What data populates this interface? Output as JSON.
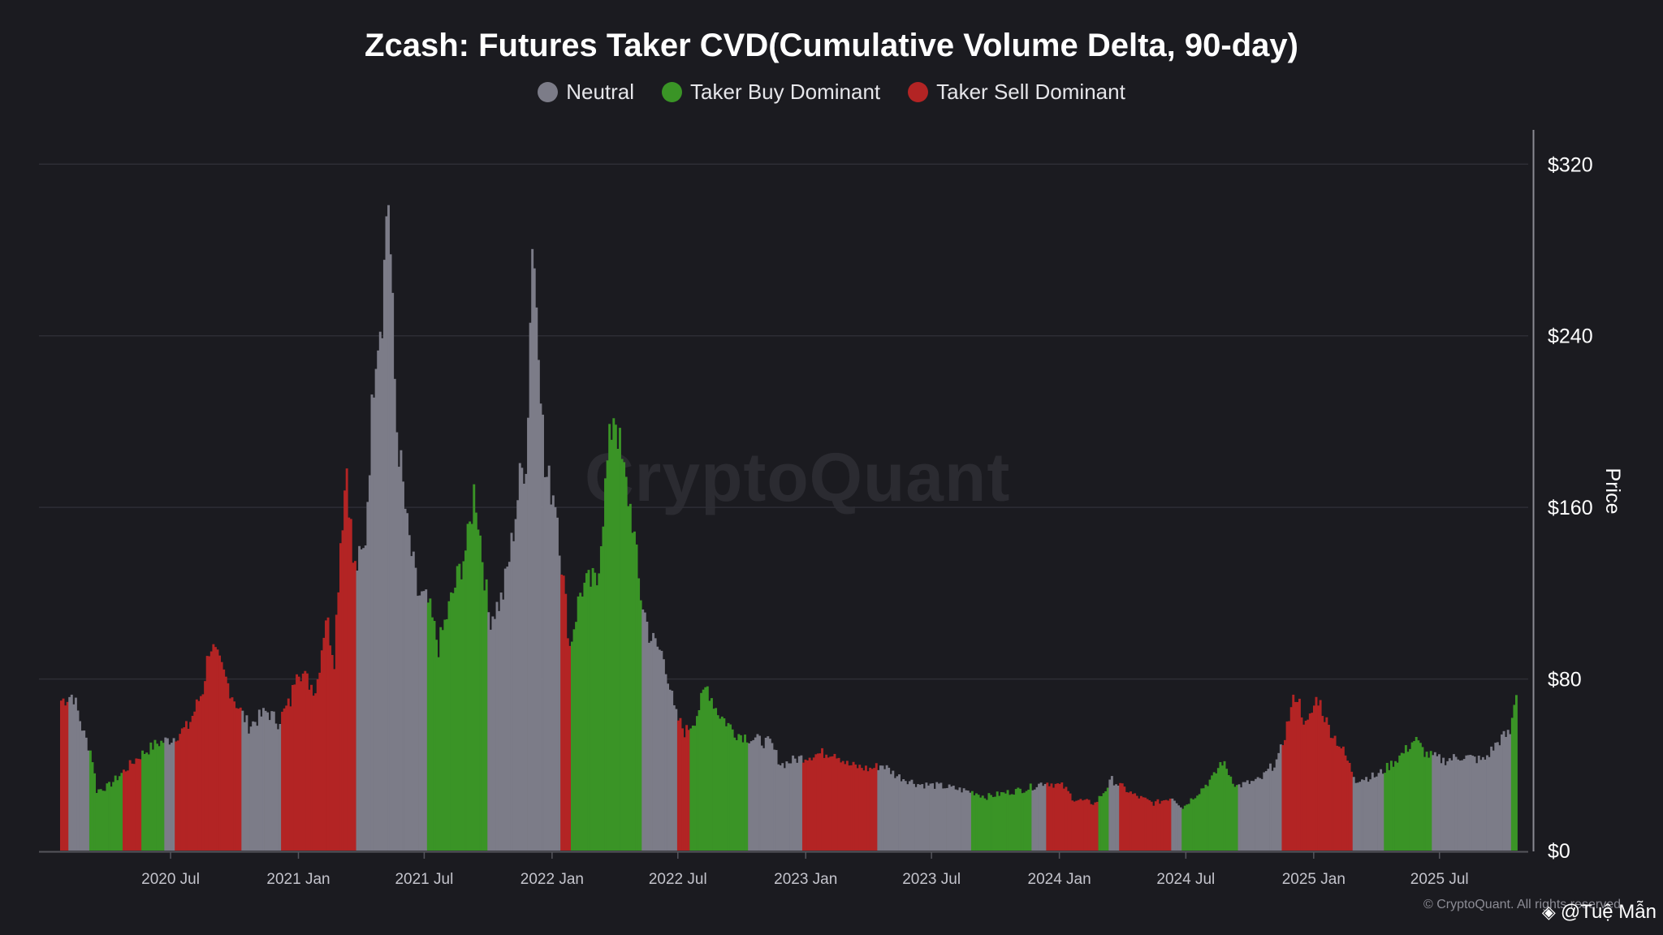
{
  "title": "Zcash: Futures Taker CVD(Cumulative Volume Delta, 90-day)",
  "legend": [
    {
      "label": "Neutral",
      "color": "#7c7c88"
    },
    {
      "label": "Taker Buy Dominant",
      "color": "#3a9426"
    },
    {
      "label": "Taker Sell Dominant",
      "color": "#b32424"
    }
  ],
  "watermark": "CryptoQuant",
  "copyright": "© CryptoQuant. All rights reserved",
  "author": "@Tuệ Mẫn",
  "author_icon": "binance-logo-icon",
  "chart_data": {
    "type": "bar",
    "ylabel": "Price",
    "ylim": [
      0,
      336
    ],
    "y_ticks": [
      "$0",
      "$80",
      "$160",
      "$240",
      "$320"
    ],
    "y_tick_values": [
      0,
      80,
      160,
      240,
      320
    ],
    "x_ticks": [
      "2020 Jul",
      "2021 Jan",
      "2021 Jul",
      "2022 Jan",
      "2022 Jul",
      "2023 Jan",
      "2023 Jul",
      "2024 Jan",
      "2024 Jul",
      "2025 Jan",
      "2025 Jul"
    ],
    "x_tick_dates": [
      "2020-07-01",
      "2021-01-01",
      "2021-07-01",
      "2022-01-01",
      "2022-07-01",
      "2023-01-01",
      "2023-07-01",
      "2024-01-01",
      "2024-07-01",
      "2025-01-01",
      "2025-07-01"
    ],
    "x_range": [
      "2020-01-10",
      "2025-10-18"
    ],
    "grid": true,
    "price_points": [
      [
        "2020-01-25",
        70
      ],
      [
        "2020-02-10",
        73
      ],
      [
        "2020-02-25",
        55
      ],
      [
        "2020-03-08",
        45
      ],
      [
        "2020-03-15",
        28
      ],
      [
        "2020-04-01",
        30
      ],
      [
        "2020-04-20",
        36
      ],
      [
        "2020-05-15",
        44
      ],
      [
        "2020-06-10",
        50
      ],
      [
        "2020-07-01",
        52
      ],
      [
        "2020-07-25",
        58
      ],
      [
        "2020-08-15",
        75
      ],
      [
        "2020-08-25",
        97
      ],
      [
        "2020-09-10",
        85
      ],
      [
        "2020-09-30",
        70
      ],
      [
        "2020-10-20",
        58
      ],
      [
        "2020-11-15",
        65
      ],
      [
        "2020-12-01",
        60
      ],
      [
        "2020-12-20",
        70
      ],
      [
        "2020-12-28",
        87
      ],
      [
        "2021-01-10",
        80
      ],
      [
        "2021-01-25",
        75
      ],
      [
        "2021-02-08",
        110
      ],
      [
        "2021-02-20",
        90
      ],
      [
        "2021-03-01",
        145
      ],
      [
        "2021-03-10",
        180
      ],
      [
        "2021-03-20",
        130
      ],
      [
        "2021-04-05",
        140
      ],
      [
        "2021-04-20",
        235
      ],
      [
        "2021-05-01",
        255
      ],
      [
        "2021-05-08",
        315
      ],
      [
        "2021-05-20",
        200
      ],
      [
        "2021-06-05",
        150
      ],
      [
        "2021-06-20",
        120
      ],
      [
        "2021-07-05",
        115
      ],
      [
        "2021-07-20",
        95
      ],
      [
        "2021-08-10",
        120
      ],
      [
        "2021-09-01",
        145
      ],
      [
        "2021-09-10",
        170
      ],
      [
        "2021-10-01",
        108
      ],
      [
        "2021-10-20",
        118
      ],
      [
        "2021-11-01",
        140
      ],
      [
        "2021-11-15",
        175
      ],
      [
        "2021-11-25",
        185
      ],
      [
        "2021-12-01",
        288
      ],
      [
        "2021-12-10",
        250
      ],
      [
        "2021-12-20",
        175
      ],
      [
        "2022-01-05",
        165
      ],
      [
        "2022-01-12",
        138
      ],
      [
        "2022-01-25",
        95
      ],
      [
        "2022-02-10",
        122
      ],
      [
        "2022-02-25",
        125
      ],
      [
        "2022-03-05",
        125
      ],
      [
        "2022-03-20",
        180
      ],
      [
        "2022-03-30",
        208
      ],
      [
        "2022-04-10",
        180
      ],
      [
        "2022-04-25",
        155
      ],
      [
        "2022-05-05",
        122
      ],
      [
        "2022-05-20",
        100
      ],
      [
        "2022-06-10",
        90
      ],
      [
        "2022-06-25",
        64
      ],
      [
        "2022-07-10",
        55
      ],
      [
        "2022-07-25",
        62
      ],
      [
        "2022-08-10",
        77
      ],
      [
        "2022-08-25",
        65
      ],
      [
        "2022-09-20",
        55
      ],
      [
        "2022-10-15",
        52
      ],
      [
        "2022-11-10",
        50
      ],
      [
        "2022-11-25",
        40
      ],
      [
        "2022-12-20",
        43
      ],
      [
        "2023-01-15",
        45
      ],
      [
        "2023-02-10",
        46
      ],
      [
        "2023-03-01",
        40
      ],
      [
        "2023-04-01",
        38
      ],
      [
        "2023-04-20",
        40
      ],
      [
        "2023-05-10",
        35
      ],
      [
        "2023-06-10",
        31
      ],
      [
        "2023-07-15",
        30
      ],
      [
        "2023-09-01",
        27
      ],
      [
        "2023-09-15",
        25
      ],
      [
        "2023-10-15",
        27
      ],
      [
        "2023-11-15",
        29
      ],
      [
        "2023-12-10",
        32
      ],
      [
        "2024-01-05",
        30
      ],
      [
        "2024-01-20",
        24
      ],
      [
        "2024-02-20",
        22
      ],
      [
        "2024-03-05",
        28
      ],
      [
        "2024-03-15",
        33
      ],
      [
        "2024-04-15",
        26
      ],
      [
        "2024-05-15",
        22
      ],
      [
        "2024-06-10",
        25
      ],
      [
        "2024-06-25",
        20
      ],
      [
        "2024-07-20",
        28
      ],
      [
        "2024-08-10",
        35
      ],
      [
        "2024-08-20",
        42
      ],
      [
        "2024-09-10",
        30
      ],
      [
        "2024-10-15",
        33
      ],
      [
        "2024-11-10",
        43
      ],
      [
        "2024-11-25",
        62
      ],
      [
        "2024-12-05",
        74
      ],
      [
        "2024-12-20",
        57
      ],
      [
        "2025-01-05",
        72
      ],
      [
        "2025-01-20",
        58
      ],
      [
        "2025-02-10",
        47
      ],
      [
        "2025-03-01",
        33
      ],
      [
        "2025-04-01",
        35
      ],
      [
        "2025-04-20",
        40
      ],
      [
        "2025-05-10",
        46
      ],
      [
        "2025-05-25",
        52
      ],
      [
        "2025-06-10",
        45
      ],
      [
        "2025-07-05",
        42
      ],
      [
        "2025-08-01",
        44
      ],
      [
        "2025-09-01",
        42
      ],
      [
        "2025-09-25",
        52
      ],
      [
        "2025-10-10",
        55
      ],
      [
        "2025-10-16",
        73
      ]
    ],
    "segments": [
      {
        "start": "2020-01-10",
        "end": "2020-02-05",
        "state": "Taker Sell Dominant"
      },
      {
        "start": "2020-02-05",
        "end": "2020-03-05",
        "state": "Neutral"
      },
      {
        "start": "2020-03-05",
        "end": "2020-04-22",
        "state": "Taker Buy Dominant"
      },
      {
        "start": "2020-04-22",
        "end": "2020-05-20",
        "state": "Taker Sell Dominant"
      },
      {
        "start": "2020-05-20",
        "end": "2020-06-20",
        "state": "Taker Buy Dominant"
      },
      {
        "start": "2020-06-20",
        "end": "2020-07-05",
        "state": "Neutral"
      },
      {
        "start": "2020-07-05",
        "end": "2020-10-10",
        "state": "Taker Sell Dominant"
      },
      {
        "start": "2020-10-10",
        "end": "2020-12-05",
        "state": "Neutral"
      },
      {
        "start": "2020-12-05",
        "end": "2021-03-25",
        "state": "Taker Sell Dominant"
      },
      {
        "start": "2021-03-25",
        "end": "2021-07-05",
        "state": "Neutral"
      },
      {
        "start": "2021-07-05",
        "end": "2021-09-28",
        "state": "Taker Buy Dominant"
      },
      {
        "start": "2021-09-28",
        "end": "2022-01-12",
        "state": "Neutral"
      },
      {
        "start": "2022-01-12",
        "end": "2022-01-28",
        "state": "Taker Sell Dominant"
      },
      {
        "start": "2022-01-28",
        "end": "2022-05-08",
        "state": "Taker Buy Dominant"
      },
      {
        "start": "2022-05-08",
        "end": "2022-06-28",
        "state": "Neutral"
      },
      {
        "start": "2022-06-28",
        "end": "2022-07-18",
        "state": "Taker Sell Dominant"
      },
      {
        "start": "2022-07-18",
        "end": "2022-10-10",
        "state": "Taker Buy Dominant"
      },
      {
        "start": "2022-10-10",
        "end": "2022-12-25",
        "state": "Neutral"
      },
      {
        "start": "2022-12-25",
        "end": "2023-04-12",
        "state": "Taker Sell Dominant"
      },
      {
        "start": "2023-04-12",
        "end": "2023-08-25",
        "state": "Neutral"
      },
      {
        "start": "2023-08-25",
        "end": "2023-11-20",
        "state": "Taker Buy Dominant"
      },
      {
        "start": "2023-11-20",
        "end": "2023-12-12",
        "state": "Neutral"
      },
      {
        "start": "2023-12-12",
        "end": "2024-02-25",
        "state": "Taker Sell Dominant"
      },
      {
        "start": "2024-02-25",
        "end": "2024-03-12",
        "state": "Taker Buy Dominant"
      },
      {
        "start": "2024-03-12",
        "end": "2024-03-25",
        "state": "Neutral"
      },
      {
        "start": "2024-03-25",
        "end": "2024-06-10",
        "state": "Taker Sell Dominant"
      },
      {
        "start": "2024-06-10",
        "end": "2024-06-25",
        "state": "Neutral"
      },
      {
        "start": "2024-06-25",
        "end": "2024-09-12",
        "state": "Taker Buy Dominant"
      },
      {
        "start": "2024-09-12",
        "end": "2024-11-15",
        "state": "Neutral"
      },
      {
        "start": "2024-11-15",
        "end": "2025-02-25",
        "state": "Taker Sell Dominant"
      },
      {
        "start": "2025-02-25",
        "end": "2025-04-10",
        "state": "Neutral"
      },
      {
        "start": "2025-04-10",
        "end": "2025-06-20",
        "state": "Taker Buy Dominant"
      },
      {
        "start": "2025-06-20",
        "end": "2025-10-12",
        "state": "Neutral"
      },
      {
        "start": "2025-10-12",
        "end": "2025-10-18",
        "state": "Taker Buy Dominant"
      }
    ]
  }
}
